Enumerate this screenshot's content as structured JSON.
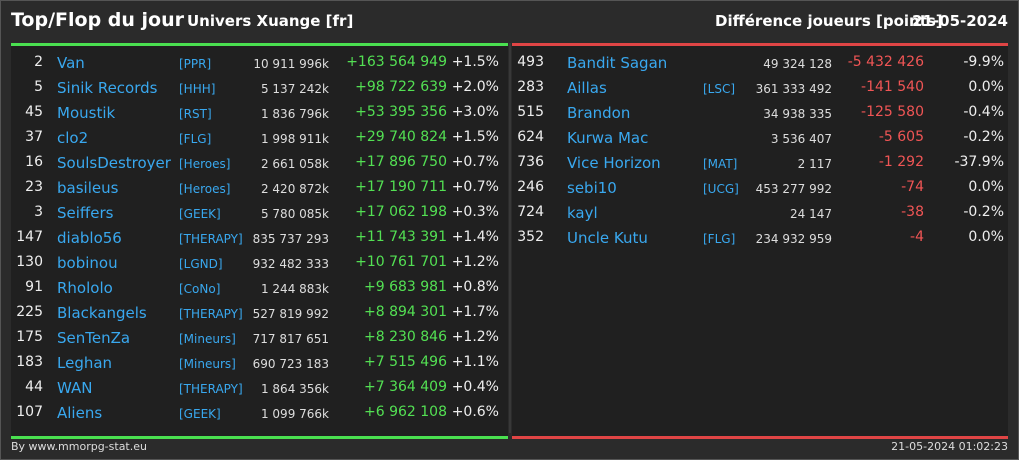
{
  "header": {
    "title": "Top/Flop du jour",
    "universe": "Univers Xuange [fr]",
    "metric": "Différence joueurs [points]",
    "date": "21-05-2024"
  },
  "colors": {
    "positive": "#53e053",
    "negative": "#f05555",
    "link": "#39a8ef"
  },
  "top": [
    {
      "rank": "2",
      "name": "Van",
      "alliance": "[PPR]",
      "points": "10 911 996k",
      "diff": "+163 564 949",
      "pct": "+1.5%"
    },
    {
      "rank": "5",
      "name": "Sinik Records",
      "alliance": "[HHH]",
      "points": "5 137 242k",
      "diff": "+98 722 639",
      "pct": "+2.0%"
    },
    {
      "rank": "45",
      "name": "Moustik",
      "alliance": "[RST]",
      "points": "1 836 796k",
      "diff": "+53 395 356",
      "pct": "+3.0%"
    },
    {
      "rank": "37",
      "name": "clo2",
      "alliance": "[FLG]",
      "points": "1 998 911k",
      "diff": "+29 740 824",
      "pct": "+1.5%"
    },
    {
      "rank": "16",
      "name": "SoulsDestroyer",
      "alliance": "[Heroes]",
      "points": "2 661 058k",
      "diff": "+17 896 750",
      "pct": "+0.7%"
    },
    {
      "rank": "23",
      "name": "basileus",
      "alliance": "[Heroes]",
      "points": "2 420 872k",
      "diff": "+17 190 711",
      "pct": "+0.7%"
    },
    {
      "rank": "3",
      "name": "Seiffers",
      "alliance": "[GEEK]",
      "points": "5 780 085k",
      "diff": "+17 062 198",
      "pct": "+0.3%"
    },
    {
      "rank": "147",
      "name": "diablo56",
      "alliance": "[THERAPY]",
      "points": "835 737 293",
      "diff": "+11 743 391",
      "pct": "+1.4%"
    },
    {
      "rank": "130",
      "name": "bobinou",
      "alliance": "[LGND]",
      "points": "932 482 333",
      "diff": "+10 761 701",
      "pct": "+1.2%"
    },
    {
      "rank": "91",
      "name": "Rhololo",
      "alliance": "[CoNo]",
      "points": "1 244 883k",
      "diff": "+9 683 981",
      "pct": "+0.8%"
    },
    {
      "rank": "225",
      "name": "Blackangels",
      "alliance": "[THERAPY]",
      "points": "527 819 992",
      "diff": "+8 894 301",
      "pct": "+1.7%"
    },
    {
      "rank": "175",
      "name": "SenTenZa",
      "alliance": "[Mineurs]",
      "points": "717 817 651",
      "diff": "+8 230 846",
      "pct": "+1.2%"
    },
    {
      "rank": "183",
      "name": "Leghan",
      "alliance": "[Mineurs]",
      "points": "690 723 183",
      "diff": "+7 515 496",
      "pct": "+1.1%"
    },
    {
      "rank": "44",
      "name": "WAN",
      "alliance": "[THERAPY]",
      "points": "1 864 356k",
      "diff": "+7 364 409",
      "pct": "+0.4%"
    },
    {
      "rank": "107",
      "name": "Aliens",
      "alliance": "[GEEK]",
      "points": "1 099 766k",
      "diff": "+6 962 108",
      "pct": "+0.6%"
    }
  ],
  "flop": [
    {
      "rank": "493",
      "name": "Bandit Sagan",
      "alliance": "",
      "points": "49 324 128",
      "diff": "-5 432 426",
      "pct": "-9.9%"
    },
    {
      "rank": "283",
      "name": "Aillas",
      "alliance": "[LSC]",
      "points": "361 333 492",
      "diff": "-141 540",
      "pct": "0.0%"
    },
    {
      "rank": "515",
      "name": "Brandon",
      "alliance": "",
      "points": "34 938 335",
      "diff": "-125 580",
      "pct": "-0.4%"
    },
    {
      "rank": "624",
      "name": "Kurwa Mac",
      "alliance": "",
      "points": "3 536 407",
      "diff": "-5 605",
      "pct": "-0.2%"
    },
    {
      "rank": "736",
      "name": "Vice Horizon",
      "alliance": "[MAT]",
      "points": "2 117",
      "diff": "-1 292",
      "pct": "-37.9%"
    },
    {
      "rank": "246",
      "name": "sebi10",
      "alliance": "[UCG]",
      "points": "453 277 992",
      "diff": "-74",
      "pct": "0.0%"
    },
    {
      "rank": "724",
      "name": "kayl",
      "alliance": "",
      "points": "24 147",
      "diff": "-38",
      "pct": "-0.2%"
    },
    {
      "rank": "352",
      "name": "Uncle Kutu",
      "alliance": "[FLG]",
      "points": "234 932 959",
      "diff": "-4",
      "pct": "0.0%"
    }
  ],
  "footer": {
    "source": "By www.mmorpg-stat.eu",
    "timestamp": "21-05-2024 01:02:23"
  }
}
